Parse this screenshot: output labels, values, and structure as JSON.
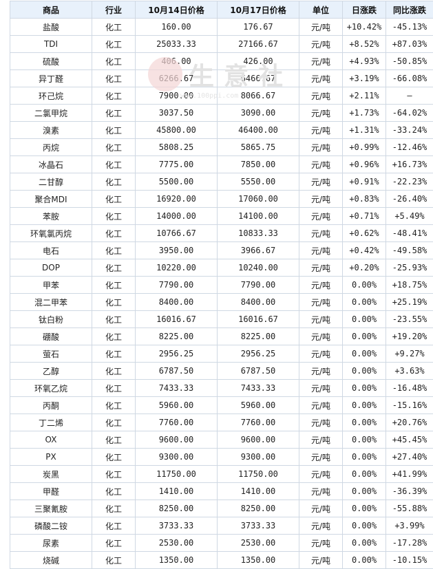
{
  "headers": [
    "商品",
    "行业",
    "10月14日价格",
    "10月17日价格",
    "单位",
    "日涨跌",
    "同比涨跌"
  ],
  "watermark": {
    "brand": "生意社",
    "url": "www.100ppi.com"
  },
  "rows": [
    {
      "name": "盐酸",
      "industry": "化工",
      "p1": "160.00",
      "p2": "176.67",
      "unit": "元/吨",
      "day": "+10.42%",
      "day_dir": "up",
      "yoy": "-45.13%",
      "yoy_dir": "down"
    },
    {
      "name": "TDI",
      "industry": "化工",
      "p1": "25033.33",
      "p2": "27166.67",
      "unit": "元/吨",
      "day": "+8.52%",
      "day_dir": "up",
      "yoy": "+87.03%",
      "yoy_dir": "up"
    },
    {
      "name": "硫酸",
      "industry": "化工",
      "p1": "406.00",
      "p2": "426.00",
      "unit": "元/吨",
      "day": "+4.93%",
      "day_dir": "up",
      "yoy": "-50.85%",
      "yoy_dir": "down"
    },
    {
      "name": "异丁醛",
      "industry": "化工",
      "p1": "6266.67",
      "p2": "6466.67",
      "unit": "元/吨",
      "day": "+3.19%",
      "day_dir": "up",
      "yoy": "-66.08%",
      "yoy_dir": "down"
    },
    {
      "name": "环己烷",
      "industry": "化工",
      "p1": "7900.00",
      "p2": "8066.67",
      "unit": "元/吨",
      "day": "+2.11%",
      "day_dir": "up",
      "yoy": "—",
      "yoy_dir": "flat"
    },
    {
      "name": "二氯甲烷",
      "industry": "化工",
      "p1": "3037.50",
      "p2": "3090.00",
      "unit": "元/吨",
      "day": "+1.73%",
      "day_dir": "up",
      "yoy": "-64.02%",
      "yoy_dir": "down"
    },
    {
      "name": "溴素",
      "industry": "化工",
      "p1": "45800.00",
      "p2": "46400.00",
      "unit": "元/吨",
      "day": "+1.31%",
      "day_dir": "up",
      "yoy": "-33.24%",
      "yoy_dir": "down"
    },
    {
      "name": "丙烷",
      "industry": "化工",
      "p1": "5808.25",
      "p2": "5865.75",
      "unit": "元/吨",
      "day": "+0.99%",
      "day_dir": "up",
      "yoy": "-12.46%",
      "yoy_dir": "down"
    },
    {
      "name": "冰晶石",
      "industry": "化工",
      "p1": "7775.00",
      "p2": "7850.00",
      "unit": "元/吨",
      "day": "+0.96%",
      "day_dir": "up",
      "yoy": "+16.73%",
      "yoy_dir": "up"
    },
    {
      "name": "二甘醇",
      "industry": "化工",
      "p1": "5500.00",
      "p2": "5550.00",
      "unit": "元/吨",
      "day": "+0.91%",
      "day_dir": "up",
      "yoy": "-22.23%",
      "yoy_dir": "down"
    },
    {
      "name": "聚合MDI",
      "industry": "化工",
      "p1": "16920.00",
      "p2": "17060.00",
      "unit": "元/吨",
      "day": "+0.83%",
      "day_dir": "up",
      "yoy": "-26.40%",
      "yoy_dir": "down"
    },
    {
      "name": "苯胺",
      "industry": "化工",
      "p1": "14000.00",
      "p2": "14100.00",
      "unit": "元/吨",
      "day": "+0.71%",
      "day_dir": "up",
      "yoy": "+5.49%",
      "yoy_dir": "up"
    },
    {
      "name": "环氧氯丙烷",
      "industry": "化工",
      "p1": "10766.67",
      "p2": "10833.33",
      "unit": "元/吨",
      "day": "+0.62%",
      "day_dir": "up",
      "yoy": "-48.41%",
      "yoy_dir": "down"
    },
    {
      "name": "电石",
      "industry": "化工",
      "p1": "3950.00",
      "p2": "3966.67",
      "unit": "元/吨",
      "day": "+0.42%",
      "day_dir": "up",
      "yoy": "-49.58%",
      "yoy_dir": "down"
    },
    {
      "name": "DOP",
      "industry": "化工",
      "p1": "10220.00",
      "p2": "10240.00",
      "unit": "元/吨",
      "day": "+0.20%",
      "day_dir": "up",
      "yoy": "-25.93%",
      "yoy_dir": "down"
    },
    {
      "name": "甲苯",
      "industry": "化工",
      "p1": "7790.00",
      "p2": "7790.00",
      "unit": "元/吨",
      "day": "0.00%",
      "day_dir": "flat",
      "yoy": "+18.75%",
      "yoy_dir": "up"
    },
    {
      "name": "混二甲苯",
      "industry": "化工",
      "p1": "8400.00",
      "p2": "8400.00",
      "unit": "元/吨",
      "day": "0.00%",
      "day_dir": "flat",
      "yoy": "+25.19%",
      "yoy_dir": "up"
    },
    {
      "name": "钛白粉",
      "industry": "化工",
      "p1": "16016.67",
      "p2": "16016.67",
      "unit": "元/吨",
      "day": "0.00%",
      "day_dir": "flat",
      "yoy": "-23.55%",
      "yoy_dir": "down"
    },
    {
      "name": "硼酸",
      "industry": "化工",
      "p1": "8225.00",
      "p2": "8225.00",
      "unit": "元/吨",
      "day": "0.00%",
      "day_dir": "flat",
      "yoy": "+19.20%",
      "yoy_dir": "up"
    },
    {
      "name": "萤石",
      "industry": "化工",
      "p1": "2956.25",
      "p2": "2956.25",
      "unit": "元/吨",
      "day": "0.00%",
      "day_dir": "flat",
      "yoy": "+9.27%",
      "yoy_dir": "up"
    },
    {
      "name": "乙醇",
      "industry": "化工",
      "p1": "6787.50",
      "p2": "6787.50",
      "unit": "元/吨",
      "day": "0.00%",
      "day_dir": "flat",
      "yoy": "+3.63%",
      "yoy_dir": "up"
    },
    {
      "name": "环氧乙烷",
      "industry": "化工",
      "p1": "7433.33",
      "p2": "7433.33",
      "unit": "元/吨",
      "day": "0.00%",
      "day_dir": "flat",
      "yoy": "-16.48%",
      "yoy_dir": "down"
    },
    {
      "name": "丙酮",
      "industry": "化工",
      "p1": "5960.00",
      "p2": "5960.00",
      "unit": "元/吨",
      "day": "0.00%",
      "day_dir": "flat",
      "yoy": "-15.16%",
      "yoy_dir": "down"
    },
    {
      "name": "丁二烯",
      "industry": "化工",
      "p1": "7760.00",
      "p2": "7760.00",
      "unit": "元/吨",
      "day": "0.00%",
      "day_dir": "flat",
      "yoy": "+20.76%",
      "yoy_dir": "up"
    },
    {
      "name": "OX",
      "industry": "化工",
      "p1": "9600.00",
      "p2": "9600.00",
      "unit": "元/吨",
      "day": "0.00%",
      "day_dir": "flat",
      "yoy": "+45.45%",
      "yoy_dir": "up"
    },
    {
      "name": "PX",
      "industry": "化工",
      "p1": "9300.00",
      "p2": "9300.00",
      "unit": "元/吨",
      "day": "0.00%",
      "day_dir": "flat",
      "yoy": "+27.40%",
      "yoy_dir": "up"
    },
    {
      "name": "炭黑",
      "industry": "化工",
      "p1": "11750.00",
      "p2": "11750.00",
      "unit": "元/吨",
      "day": "0.00%",
      "day_dir": "flat",
      "yoy": "+41.99%",
      "yoy_dir": "up"
    },
    {
      "name": "甲醛",
      "industry": "化工",
      "p1": "1410.00",
      "p2": "1410.00",
      "unit": "元/吨",
      "day": "0.00%",
      "day_dir": "flat",
      "yoy": "-36.39%",
      "yoy_dir": "down"
    },
    {
      "name": "三聚氰胺",
      "industry": "化工",
      "p1": "8250.00",
      "p2": "8250.00",
      "unit": "元/吨",
      "day": "0.00%",
      "day_dir": "flat",
      "yoy": "-55.88%",
      "yoy_dir": "down"
    },
    {
      "name": "磷酸二铵",
      "industry": "化工",
      "p1": "3733.33",
      "p2": "3733.33",
      "unit": "元/吨",
      "day": "0.00%",
      "day_dir": "flat",
      "yoy": "+3.99%",
      "yoy_dir": "up"
    },
    {
      "name": "尿素",
      "industry": "化工",
      "p1": "2530.00",
      "p2": "2530.00",
      "unit": "元/吨",
      "day": "0.00%",
      "day_dir": "flat",
      "yoy": "-17.28%",
      "yoy_dir": "down"
    },
    {
      "name": "烧碱",
      "industry": "化工",
      "p1": "1350.00",
      "p2": "1350.00",
      "unit": "元/吨",
      "day": "0.00%",
      "day_dir": "flat",
      "yoy": "-10.15%",
      "yoy_dir": "down"
    }
  ]
}
